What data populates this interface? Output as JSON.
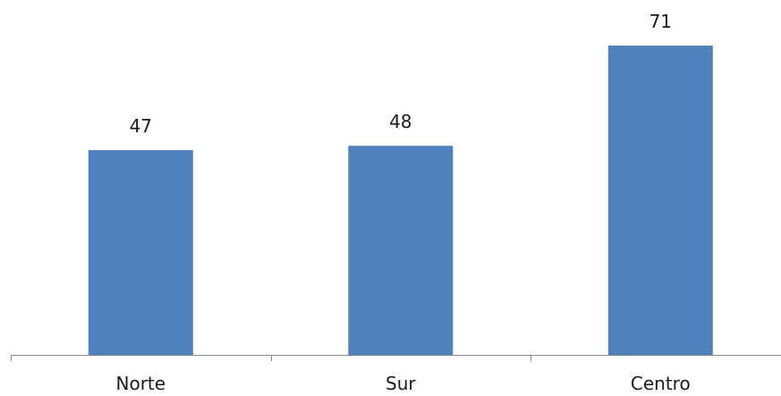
{
  "chart_data": {
    "type": "bar",
    "categories": [
      "Norte",
      "Sur",
      "Centro"
    ],
    "values": [
      47,
      48,
      71
    ],
    "title": "",
    "xlabel": "",
    "ylabel": "",
    "ylim": [
      0,
      80
    ],
    "grid": false,
    "legend": "none",
    "data_labels": true,
    "bar_color": "#4F81BD",
    "axis_color": "#868686"
  }
}
